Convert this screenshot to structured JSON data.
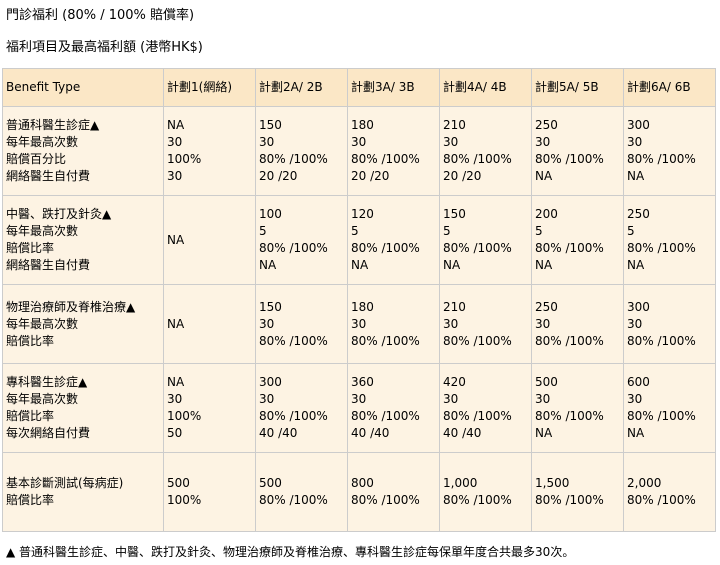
{
  "headings": {
    "title": "門診福利 (80% / 100% 賠償率)",
    "subtitle": "福利項目及最高福利額 (港幣HK$)"
  },
  "table": {
    "headers": [
      "Benefit Type",
      "計劃1(網絡)",
      "計劃2A/ 2B",
      "計劃3A/ 3B",
      "計劃4A/ 4B",
      "計劃5A/ 5B",
      "計劃6A/ 6B"
    ],
    "rows": [
      {
        "label": [
          "普通科醫生診症▲",
          "每年最高次數",
          "賠償百分比",
          "網絡醫生自付費"
        ],
        "plans": [
          [
            "NA",
            "30",
            "100%",
            "30"
          ],
          [
            "150",
            "30",
            "80% /100%",
            "20 /20"
          ],
          [
            "180",
            "30",
            "80% /100%",
            "20 /20"
          ],
          [
            "210",
            "30",
            "80% /100%",
            "20 /20"
          ],
          [
            "250",
            "30",
            "80% /100%",
            "NA"
          ],
          [
            "300",
            "30",
            "80% /100%",
            "NA"
          ]
        ]
      },
      {
        "label": [
          "中醫、跌打及針灸▲",
          "每年最高次數",
          "賠償比率",
          "網絡醫生自付費"
        ],
        "plans": [
          [
            "NA"
          ],
          [
            "100",
            "5",
            "80% /100%",
            "NA"
          ],
          [
            "120",
            "5",
            "80% /100%",
            "NA"
          ],
          [
            "150",
            "5",
            "80% /100%",
            "NA"
          ],
          [
            "200",
            "5",
            "80% /100%",
            "NA"
          ],
          [
            "250",
            "5",
            "80% /100%",
            "NA"
          ]
        ]
      },
      {
        "label": [
          "物理治療師及脊椎治療▲",
          "每年最高次數",
          "賠償比率"
        ],
        "plans": [
          [
            "NA"
          ],
          [
            "150",
            "30",
            "80% /100%"
          ],
          [
            "180",
            "30",
            "80% /100%"
          ],
          [
            "210",
            "30",
            "80% /100%"
          ],
          [
            "250",
            "30",
            "80% /100%"
          ],
          [
            "300",
            "30",
            "80% /100%"
          ]
        ]
      },
      {
        "label": [
          "專科醫生診症▲",
          "每年最高次數",
          "賠償比率",
          "每次網絡自付費"
        ],
        "plans": [
          [
            "NA",
            "30",
            "100%",
            "50"
          ],
          [
            "300",
            "30",
            "80% /100%",
            "40 /40"
          ],
          [
            "360",
            "30",
            "80% /100%",
            "40 /40"
          ],
          [
            "420",
            "30",
            "80% /100%",
            "40 /40"
          ],
          [
            "500",
            "30",
            "80% /100%",
            "NA"
          ],
          [
            "600",
            "30",
            "80% /100%",
            "NA"
          ]
        ]
      },
      {
        "label": [
          "基本診斷測試(每病症)",
          "賠償比率"
        ],
        "plans": [
          [
            "500",
            "100%"
          ],
          [
            "500",
            "80% /100%"
          ],
          [
            "800",
            "80% /100%"
          ],
          [
            "1,000",
            "80% /100%"
          ],
          [
            "1,500",
            "80% /100%"
          ],
          [
            "2,000",
            "80% /100%"
          ]
        ]
      }
    ]
  },
  "footnote": "▲ 普通科醫生診症、中醫、跌打及針灸、物理治療師及脊椎治療、專科醫生診症每保單年度合共最多30次。",
  "colors": {
    "header_bg": "#fbe7c6",
    "cell_bg": "#fdf3e3",
    "border": "#cccccc"
  }
}
